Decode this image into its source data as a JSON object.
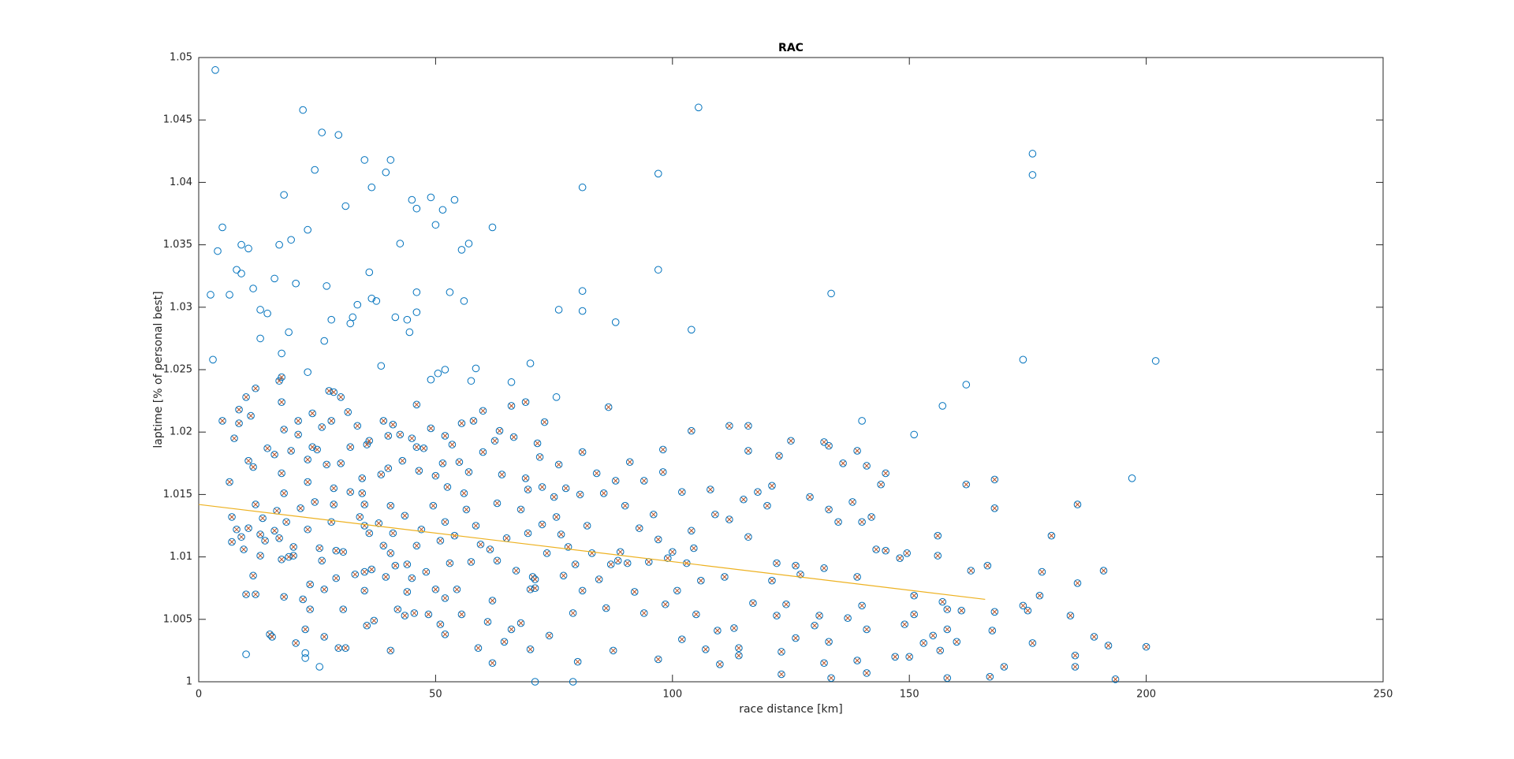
{
  "chart_data": {
    "type": "scatter",
    "title": "RAC",
    "x_label": "race distance [km]",
    "y_label": "laptime [% of personal best]",
    "xlim": [
      0,
      250
    ],
    "ylim": [
      1,
      1.05
    ],
    "xticks": [
      0,
      50,
      100,
      150,
      200,
      250
    ],
    "yticks": [
      1,
      1.005,
      1.01,
      1.015,
      1.02,
      1.025,
      1.03,
      1.035,
      1.04,
      1.045,
      1.05
    ],
    "series": [
      {
        "marker": "o",
        "color": "#0072bd",
        "x": [
          3.5,
          2.5,
          3,
          4,
          5,
          6.5,
          8,
          9,
          9,
          10.5,
          11.5,
          13,
          13,
          14.5,
          16,
          17,
          17.5,
          18,
          19,
          19.5,
          20.5,
          22,
          23,
          23,
          24.5,
          26,
          26.5,
          27,
          28,
          29.5,
          31,
          32,
          32.5,
          33.5,
          35,
          36,
          36.5,
          36.5,
          37.5,
          38.5,
          39.5,
          40.5,
          41.5,
          42.5,
          44,
          44.5,
          45,
          46,
          46,
          46,
          49,
          49,
          50,
          50.5,
          51.5,
          52,
          53,
          54,
          55.5,
          56,
          57,
          57.5,
          58.5,
          62,
          66,
          70,
          76,
          75.5,
          81,
          81,
          81,
          88,
          97,
          97,
          104,
          105.5,
          133.5,
          140,
          151,
          157,
          162,
          174,
          176,
          176,
          197,
          202,
          71,
          79,
          10,
          22.5,
          22.5,
          25.5
        ],
        "values": [
          1.049,
          1.031,
          1.0258,
          1.0345,
          1.0364,
          1.031,
          1.033,
          1.035,
          1.0327,
          1.0347,
          1.0315,
          1.0275,
          1.0298,
          1.0295,
          1.0323,
          1.035,
          1.0263,
          1.039,
          1.028,
          1.0354,
          1.0319,
          1.0458,
          1.0362,
          1.0248,
          1.041,
          1.044,
          1.0273,
          1.0317,
          1.029,
          1.0438,
          1.0381,
          1.0287,
          1.0292,
          1.0302,
          1.0418,
          1.0328,
          1.0396,
          1.0307,
          1.0305,
          1.0253,
          1.0408,
          1.0418,
          1.0292,
          1.0351,
          1.029,
          1.028,
          1.0386,
          1.0379,
          1.0312,
          1.0296,
          1.0388,
          1.0242,
          1.0366,
          1.0247,
          1.0378,
          1.025,
          1.0312,
          1.0386,
          1.0346,
          1.0305,
          1.0351,
          1.0241,
          1.0251,
          1.0364,
          1.024,
          1.0255,
          1.0298,
          1.0228,
          1.0396,
          1.0313,
          1.0297,
          1.0288,
          1.0407,
          1.033,
          1.0282,
          1.046,
          1.0311,
          1.0209,
          1.0198,
          1.0221,
          1.0238,
          1.0258,
          1.0423,
          1.0406,
          1.0163,
          1.0257,
          1,
          1,
          1.0022,
          1.0023,
          1.0019,
          1.0012
        ]
      },
      {
        "marker": "ox",
        "color": "#0072bd",
        "cross_color": "#d95319",
        "x": [
          5,
          6.5,
          7,
          7,
          7.5,
          8,
          8.5,
          8.5,
          9,
          9.5,
          10,
          10,
          10.5,
          10.5,
          11,
          11.5,
          11.5,
          12,
          12,
          12,
          13,
          13,
          13.5,
          14,
          14.5,
          15,
          15.5,
          16,
          16,
          16.5,
          17,
          17,
          17.5,
          17.5,
          17.5,
          17.5,
          18,
          18,
          18,
          18.5,
          19,
          19.5,
          20,
          20,
          20.5,
          21,
          21,
          21.5,
          22,
          22.5,
          23,
          23,
          23,
          23.5,
          23.5,
          24,
          24,
          24.5,
          25,
          25.5,
          26,
          26,
          26.5,
          26.5,
          27,
          27.5,
          28,
          28,
          28.5,
          28.5,
          28.5,
          29,
          29,
          29.5,
          30,
          30,
          30.5,
          30.5,
          31,
          31.5,
          32,
          32,
          33,
          33.5,
          34,
          34.5,
          34.5,
          35,
          35,
          35,
          35,
          35.5,
          35.5,
          36,
          36,
          36.5,
          37,
          38,
          38.5,
          39,
          39,
          39.5,
          40,
          40,
          40.5,
          40.5,
          40.5,
          41,
          41,
          41.5,
          42,
          42.5,
          43,
          43.5,
          43.5,
          44,
          44,
          45,
          45,
          45.5,
          46,
          46,
          46,
          46.5,
          47,
          47.5,
          48,
          48.5,
          49,
          49.5,
          50,
          50,
          51,
          51,
          51.5,
          52,
          52,
          52,
          52,
          52.5,
          53,
          53.5,
          54,
          54.5,
          55,
          55.5,
          55.5,
          56,
          56.5,
          57,
          57.5,
          58,
          58.5,
          59,
          59.5,
          60,
          60,
          61,
          61.5,
          62,
          62,
          62.5,
          63,
          63,
          63.5,
          64,
          64.5,
          65,
          66,
          66,
          66.5,
          67,
          68,
          68,
          69,
          69,
          69.5,
          69.5,
          70,
          70,
          70.5,
          71,
          71,
          71.5,
          72,
          72.5,
          72.5,
          73,
          73.5,
          74,
          75,
          75.5,
          76,
          76.5,
          77,
          77.5,
          78,
          79,
          79.5,
          80,
          80.5,
          81,
          81,
          82,
          83,
          84,
          84.5,
          85.5,
          86,
          86.5,
          87,
          87.5,
          88,
          88.5,
          89,
          90,
          90.5,
          91,
          92,
          93,
          94,
          94,
          95,
          96,
          97,
          97,
          98,
          98,
          98.5,
          99,
          100,
          101,
          102,
          102,
          103,
          104,
          104,
          104.5,
          105,
          106,
          107,
          108,
          109,
          109.5,
          110,
          111,
          112,
          112,
          113,
          114,
          114,
          115,
          116,
          116,
          116,
          117,
          118,
          120,
          121,
          121,
          122,
          122,
          122.5,
          123,
          123,
          124,
          125,
          126,
          126,
          127,
          129,
          130,
          131,
          132,
          132,
          132,
          133,
          133,
          133,
          133.5,
          135,
          136,
          137,
          138,
          139,
          139,
          139,
          140,
          140,
          141,
          141,
          141,
          142,
          143,
          144,
          145,
          145,
          147,
          148,
          149,
          149.5,
          150,
          151,
          151,
          153,
          155,
          156,
          156,
          156.5,
          157,
          158,
          158,
          158,
          160,
          161,
          162,
          163,
          166.5,
          167,
          167.5,
          168,
          168,
          168,
          170,
          174,
          175,
          176,
          177.5,
          178,
          180,
          184,
          185,
          185,
          185.5,
          185.5,
          189,
          191,
          192,
          193.5,
          200
        ],
        "values": [
          1.0209,
          1.016,
          1.0132,
          1.0112,
          1.0195,
          1.0122,
          1.0218,
          1.0207,
          1.0116,
          1.0106,
          1.0228,
          1.007,
          1.0177,
          1.0123,
          1.0213,
          1.0172,
          1.0085,
          1.0235,
          1.0142,
          1.007,
          1.0118,
          1.0101,
          1.0131,
          1.0113,
          1.0187,
          1.0038,
          1.0036,
          1.0182,
          1.0121,
          1.0137,
          1.0241,
          1.0115,
          1.0244,
          1.0224,
          1.0167,
          1.0098,
          1.0202,
          1.0151,
          1.0068,
          1.0128,
          1.01,
          1.0185,
          1.0108,
          1.0101,
          1.0031,
          1.0209,
          1.0198,
          1.0139,
          1.0066,
          1.0042,
          1.0178,
          1.016,
          1.0122,
          1.0078,
          1.0058,
          1.0215,
          1.0188,
          1.0144,
          1.0186,
          1.0107,
          1.0204,
          1.0097,
          1.0074,
          1.0036,
          1.0174,
          1.0233,
          1.0209,
          1.0128,
          1.0232,
          1.0155,
          1.0142,
          1.0105,
          1.0083,
          1.0027,
          1.0228,
          1.0175,
          1.0104,
          1.0058,
          1.0027,
          1.0216,
          1.0188,
          1.0152,
          1.0086,
          1.0205,
          1.0132,
          1.0163,
          1.0151,
          1.0142,
          1.0125,
          1.0088,
          1.0073,
          1.019,
          1.0045,
          1.0193,
          1.0119,
          1.009,
          1.0049,
          1.0127,
          1.0166,
          1.0209,
          1.0109,
          1.0084,
          1.0197,
          1.0171,
          1.0141,
          1.0103,
          1.0025,
          1.0206,
          1.0119,
          1.0093,
          1.0058,
          1.0198,
          1.0177,
          1.0133,
          1.0053,
          1.0094,
          1.0072,
          1.0195,
          1.0083,
          1.0055,
          1.0222,
          1.0188,
          1.0109,
          1.0169,
          1.0122,
          1.0187,
          1.0088,
          1.0054,
          1.0203,
          1.0141,
          1.0165,
          1.0074,
          1.0113,
          1.0046,
          1.0175,
          1.0197,
          1.0128,
          1.0067,
          1.0038,
          1.0156,
          1.0095,
          1.019,
          1.0117,
          1.0074,
          1.0176,
          1.0207,
          1.0054,
          1.0151,
          1.0138,
          1.0168,
          1.0096,
          1.0209,
          1.0125,
          1.0027,
          1.011,
          1.0217,
          1.0184,
          1.0048,
          1.0106,
          1.0065,
          1.0015,
          1.0193,
          1.0143,
          1.0097,
          1.0201,
          1.0166,
          1.0032,
          1.0115,
          1.0221,
          1.0042,
          1.0196,
          1.0089,
          1.0138,
          1.0047,
          1.0224,
          1.0163,
          1.0154,
          1.0119,
          1.0074,
          1.0026,
          1.0084,
          1.0082,
          1.0075,
          1.0191,
          1.018,
          1.0156,
          1.0126,
          1.0208,
          1.0103,
          1.0037,
          1.0148,
          1.0132,
          1.0174,
          1.0118,
          1.0085,
          1.0155,
          1.0108,
          1.0055,
          1.0094,
          1.0016,
          1.015,
          1.0184,
          1.0073,
          1.0125,
          1.0103,
          1.0167,
          1.0082,
          1.0151,
          1.0059,
          1.022,
          1.0094,
          1.0025,
          1.0161,
          1.0097,
          1.0104,
          1.0141,
          1.0095,
          1.0176,
          1.0072,
          1.0123,
          1.0161,
          1.0055,
          1.0096,
          1.0134,
          1.0114,
          1.0018,
          1.0186,
          1.0168,
          1.0062,
          1.0099,
          1.0104,
          1.0073,
          1.0034,
          1.0152,
          1.0095,
          1.0201,
          1.0121,
          1.0107,
          1.0054,
          1.0081,
          1.0026,
          1.0154,
          1.0134,
          1.0041,
          1.0014,
          1.0084,
          1.0205,
          1.013,
          1.0043,
          1.0027,
          1.0021,
          1.0146,
          1.0205,
          1.0185,
          1.0116,
          1.0063,
          1.0152,
          1.0141,
          1.0157,
          1.0081,
          1.0095,
          1.0053,
          1.0181,
          1.0024,
          1.0006,
          1.0062,
          1.0193,
          1.0093,
          1.0035,
          1.0086,
          1.0148,
          1.0045,
          1.0053,
          1.0192,
          1.0091,
          1.0015,
          1.0189,
          1.0138,
          1.0032,
          1.0003,
          1.0128,
          1.0175,
          1.0051,
          1.0144,
          1.0185,
          1.0084,
          1.0017,
          1.0128,
          1.0061,
          1.0173,
          1.0042,
          1.0007,
          1.0132,
          1.0106,
          1.0158,
          1.0167,
          1.0105,
          1.002,
          1.0099,
          1.0046,
          1.0103,
          1.002,
          1.0069,
          1.0054,
          1.0031,
          1.0037,
          1.0117,
          1.0101,
          1.0025,
          1.0064,
          1.0058,
          1.0042,
          1.0003,
          1.0032,
          1.0057,
          1.0158,
          1.0089,
          1.0093,
          1.0004,
          1.0041,
          1.0162,
          1.0139,
          1.0056,
          1.0012,
          1.0061,
          1.0057,
          1.0031,
          1.0069,
          1.0088,
          1.0117,
          1.0053,
          1.0012,
          1.0021,
          1.0142,
          1.0079,
          1.0036,
          1.0089,
          1.0029,
          1.0002,
          1.0028
        ]
      },
      {
        "marker": "line",
        "color": "#edb120",
        "x": [
          0,
          166
        ],
        "values": [
          1.0142,
          1.0066
        ]
      }
    ]
  }
}
